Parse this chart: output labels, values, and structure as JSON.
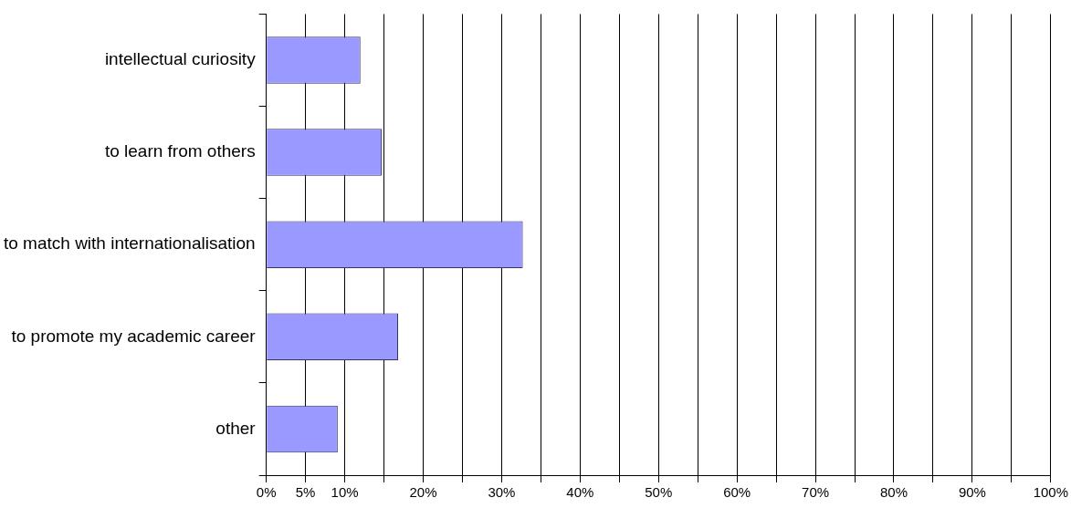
{
  "chart_data": {
    "type": "bar",
    "orientation": "horizontal",
    "categories": [
      "intellectual curiosity",
      "to learn from others",
      "to match with internationalisation",
      "to promote my academic career",
      "other"
    ],
    "values": [
      12,
      14.7,
      32.7,
      16.8,
      9.1
    ],
    "color": "#9999ff",
    "xlim": [
      0,
      100
    ],
    "xticks": [
      {
        "value": 0,
        "label": "0%"
      },
      {
        "value": 5,
        "label": "5%"
      },
      {
        "value": 10,
        "label": "10%"
      },
      {
        "value": 15,
        "label": null
      },
      {
        "value": 20,
        "label": "20%"
      },
      {
        "value": 25,
        "label": null
      },
      {
        "value": 30,
        "label": "30%"
      },
      {
        "value": 35,
        "label": null
      },
      {
        "value": 40,
        "label": "40%"
      },
      {
        "value": 45,
        "label": null
      },
      {
        "value": 50,
        "label": "50%"
      },
      {
        "value": 55,
        "label": null
      },
      {
        "value": 60,
        "label": "60%"
      },
      {
        "value": 65,
        "label": null
      },
      {
        "value": 70,
        "label": "70%"
      },
      {
        "value": 75,
        "label": null
      },
      {
        "value": 80,
        "label": "80%"
      },
      {
        "value": 85,
        "label": null
      },
      {
        "value": 90,
        "label": "90%"
      },
      {
        "value": 95,
        "label": null
      },
      {
        "value": 100,
        "label": "100%"
      }
    ],
    "grid": "x",
    "legend": false
  }
}
